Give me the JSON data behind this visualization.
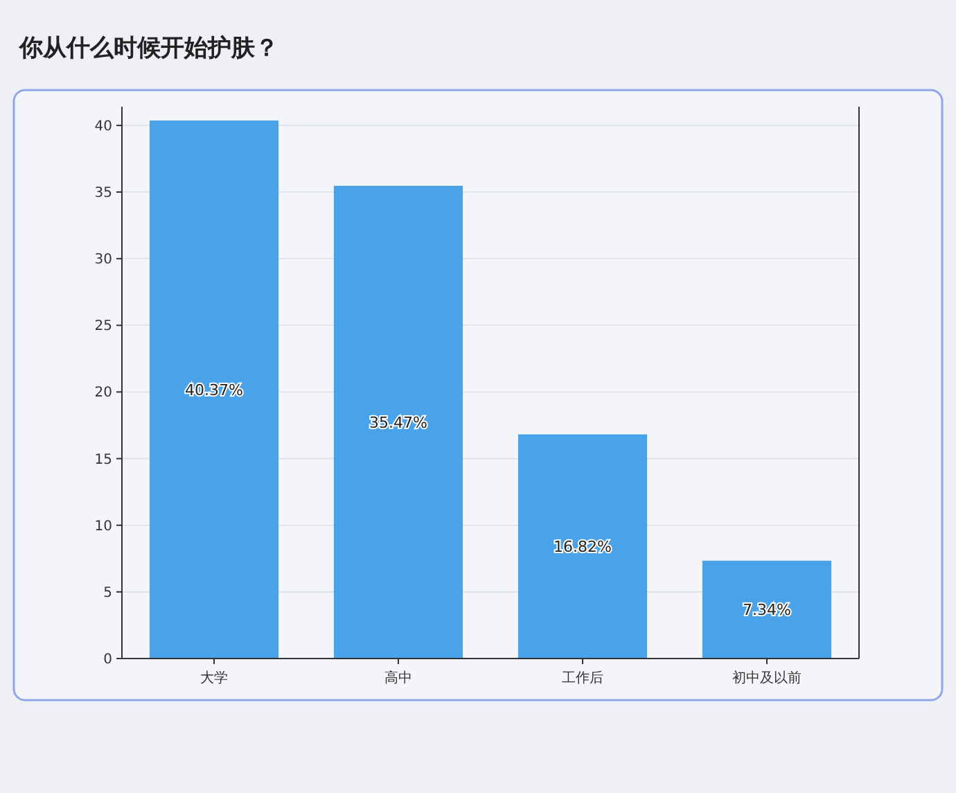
{
  "chart_data": {
    "type": "bar",
    "title": "你从什么时候开始护肤？",
    "categories": [
      "大学",
      "高中",
      "工作后",
      "初中及以前"
    ],
    "values": [
      40.37,
      35.47,
      16.82,
      7.34
    ],
    "value_labels": [
      "40.37%",
      "35.47%",
      "16.82%",
      "7.34%"
    ],
    "color": "#4aa3e8",
    "ylim": [
      0,
      41.4
    ],
    "yticks": [
      0,
      5,
      10,
      15,
      20,
      25,
      30,
      35,
      40
    ],
    "grid": "y"
  }
}
